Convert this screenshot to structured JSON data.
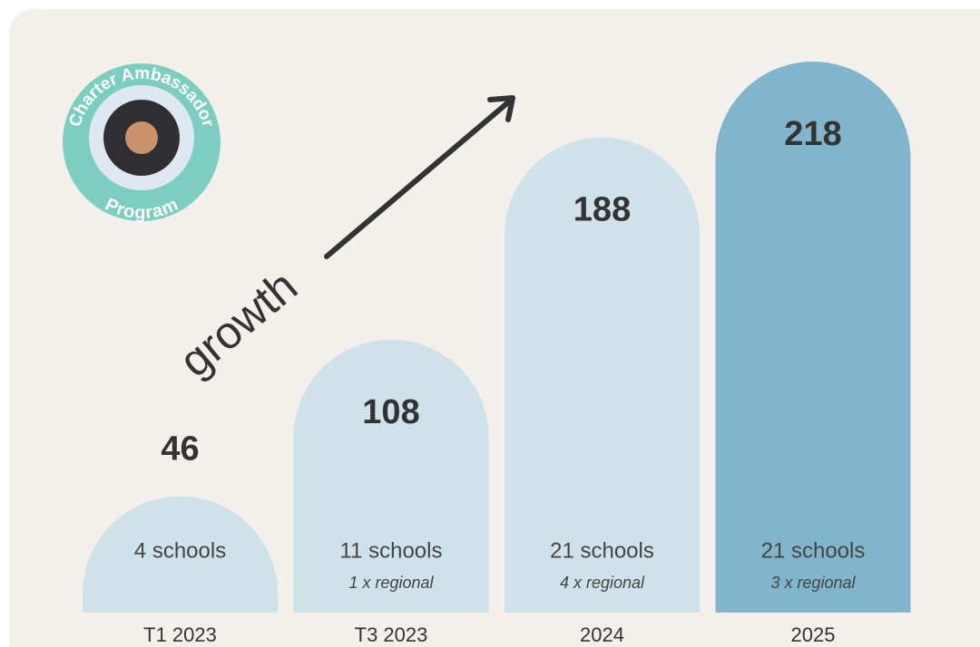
{
  "chart_data": {
    "type": "bar",
    "annotation": "growth",
    "logo": {
      "top_text": "Charter Ambassador",
      "bottom_text": "Program"
    },
    "categories": [
      "T1 2023",
      "T3 2023",
      "2024",
      "2025"
    ],
    "values": [
      46,
      108,
      188,
      218
    ],
    "colors": [
      "#cfe1e9",
      "#cfe1e9",
      "#cfe1e9",
      "#80b5cc"
    ],
    "schools": [
      "4 schools",
      "11 schools",
      "21 schools",
      "21 schools"
    ],
    "regional": [
      null,
      "1 x regional",
      "4 x regional",
      "3 x regional"
    ]
  }
}
